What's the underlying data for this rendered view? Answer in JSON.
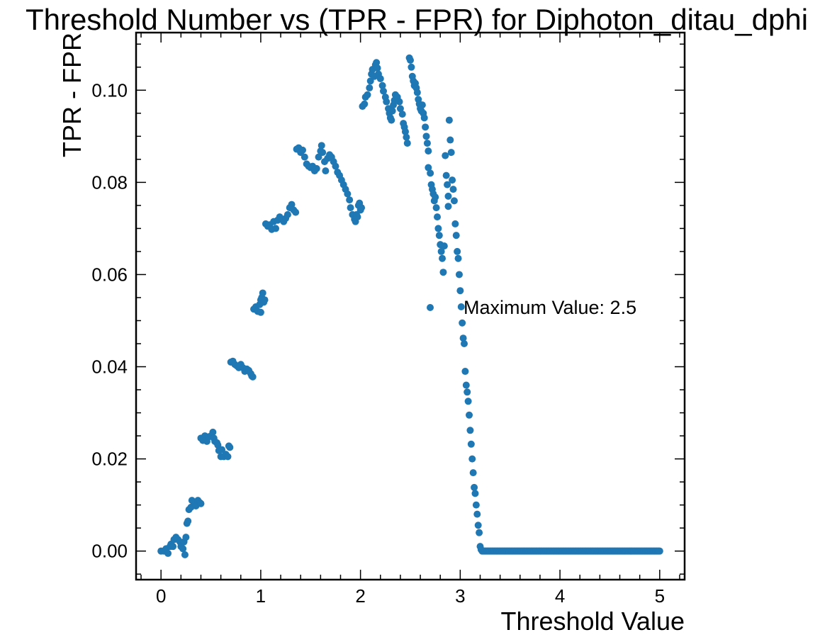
{
  "chart_data": {
    "type": "scatter",
    "title": "Threshold Number vs (TPR - FPR) for Diphoton_ditau_dphi",
    "xlabel": "Threshold Value",
    "ylabel": "TPR - FPR",
    "xlim": [
      -0.25,
      5.25
    ],
    "ylim": [
      -0.0062,
      0.1125
    ],
    "xticks": [
      0,
      1,
      2,
      3,
      4,
      5
    ],
    "xtick_labels": [
      "0",
      "1",
      "2",
      "3",
      "4",
      "5"
    ],
    "yticks": [
      0.0,
      0.02,
      0.04,
      0.06,
      0.08,
      0.1
    ],
    "ytick_labels": [
      "0.00",
      "0.02",
      "0.04",
      "0.06",
      "0.08",
      "0.10"
    ],
    "grid": false,
    "legend": {
      "position": "center-right",
      "entries": [
        "Maximum Value:  2.5"
      ]
    },
    "marker_color": "#1f77b4",
    "series": [
      {
        "name": "Maximum Value:  2.5",
        "points": [
          [
            0.0,
            0.0
          ],
          [
            0.03,
            0.0
          ],
          [
            0.05,
            0.0005
          ],
          [
            0.07,
            -0.0005
          ],
          [
            0.09,
            0.001
          ],
          [
            0.1,
            0.0015
          ],
          [
            0.12,
            0.001
          ],
          [
            0.13,
            0.0025
          ],
          [
            0.15,
            0.003
          ],
          [
            0.17,
            0.0025
          ],
          [
            0.19,
            0.002
          ],
          [
            0.2,
            0.001
          ],
          [
            0.22,
            0.0005
          ],
          [
            0.23,
            0.002
          ],
          [
            0.24,
            -0.0008
          ],
          [
            0.25,
            0.003
          ],
          [
            0.26,
            0.006
          ],
          [
            0.27,
            0.0065
          ],
          [
            0.28,
            0.009
          ],
          [
            0.3,
            0.0095
          ],
          [
            0.31,
            0.011
          ],
          [
            0.33,
            0.0105
          ],
          [
            0.35,
            0.0098
          ],
          [
            0.37,
            0.011
          ],
          [
            0.39,
            0.0105
          ],
          [
            0.4,
            0.0103
          ],
          [
            0.4,
            0.0245
          ],
          [
            0.42,
            0.024
          ],
          [
            0.44,
            0.025
          ],
          [
            0.46,
            0.0238
          ],
          [
            0.48,
            0.0248
          ],
          [
            0.5,
            0.025
          ],
          [
            0.52,
            0.0258
          ],
          [
            0.53,
            0.0245
          ],
          [
            0.54,
            0.0238
          ],
          [
            0.56,
            0.0235
          ],
          [
            0.57,
            0.023
          ],
          [
            0.58,
            0.0218
          ],
          [
            0.6,
            0.0205
          ],
          [
            0.61,
            0.022
          ],
          [
            0.63,
            0.0205
          ],
          [
            0.65,
            0.021
          ],
          [
            0.67,
            0.0205
          ],
          [
            0.68,
            0.0228
          ],
          [
            0.69,
            0.0225
          ],
          [
            0.7,
            0.041
          ],
          [
            0.72,
            0.0412
          ],
          [
            0.74,
            0.0405
          ],
          [
            0.76,
            0.0402
          ],
          [
            0.78,
            0.0398
          ],
          [
            0.8,
            0.0405
          ],
          [
            0.82,
            0.0398
          ],
          [
            0.84,
            0.039
          ],
          [
            0.86,
            0.0395
          ],
          [
            0.88,
            0.0392
          ],
          [
            0.9,
            0.0385
          ],
          [
            0.91,
            0.038
          ],
          [
            0.92,
            0.0378
          ],
          [
            0.93,
            0.0525
          ],
          [
            0.95,
            0.053
          ],
          [
            0.97,
            0.052
          ],
          [
            0.99,
            0.0535
          ],
          [
            1.0,
            0.0545
          ],
          [
            1.0,
            0.0518
          ],
          [
            1.01,
            0.055
          ],
          [
            1.02,
            0.056
          ],
          [
            1.03,
            0.054
          ],
          [
            1.04,
            0.0545
          ],
          [
            1.05,
            0.071
          ],
          [
            1.07,
            0.0705
          ],
          [
            1.09,
            0.0708
          ],
          [
            1.11,
            0.0698
          ],
          [
            1.13,
            0.0715
          ],
          [
            1.15,
            0.07
          ],
          [
            1.17,
            0.0718
          ],
          [
            1.19,
            0.0725
          ],
          [
            1.21,
            0.072
          ],
          [
            1.23,
            0.0715
          ],
          [
            1.25,
            0.0722
          ],
          [
            1.27,
            0.073
          ],
          [
            1.29,
            0.0745
          ],
          [
            1.31,
            0.0752
          ],
          [
            1.33,
            0.074
          ],
          [
            1.35,
            0.0735
          ],
          [
            1.36,
            0.0872
          ],
          [
            1.38,
            0.0875
          ],
          [
            1.4,
            0.0865
          ],
          [
            1.42,
            0.087
          ],
          [
            1.44,
            0.0855
          ],
          [
            1.46,
            0.084
          ],
          [
            1.48,
            0.0835
          ],
          [
            1.5,
            0.0832
          ],
          [
            1.52,
            0.0835
          ],
          [
            1.54,
            0.0825
          ],
          [
            1.56,
            0.083
          ],
          [
            1.58,
            0.0855
          ],
          [
            1.6,
            0.0868
          ],
          [
            1.61,
            0.088
          ],
          [
            1.62,
            0.0865
          ],
          [
            1.64,
            0.0845
          ],
          [
            1.65,
            0.0825
          ],
          [
            1.67,
            0.0852
          ],
          [
            1.69,
            0.086
          ],
          [
            1.71,
            0.0855
          ],
          [
            1.73,
            0.0845
          ],
          [
            1.75,
            0.0835
          ],
          [
            1.77,
            0.0822
          ],
          [
            1.79,
            0.0815
          ],
          [
            1.81,
            0.0805
          ],
          [
            1.83,
            0.0795
          ],
          [
            1.85,
            0.0785
          ],
          [
            1.87,
            0.0775
          ],
          [
            1.89,
            0.0762
          ],
          [
            1.9,
            0.0745
          ],
          [
            1.92,
            0.073
          ],
          [
            1.94,
            0.072
          ],
          [
            1.95,
            0.0715
          ],
          [
            1.96,
            0.073
          ],
          [
            1.97,
            0.0725
          ],
          [
            1.98,
            0.075
          ],
          [
            1.99,
            0.0755
          ],
          [
            2.0,
            0.074
          ],
          [
            2.01,
            0.0745
          ],
          [
            2.02,
            0.0965
          ],
          [
            2.04,
            0.097
          ],
          [
            2.05,
            0.0985
          ],
          [
            2.07,
            0.099
          ],
          [
            2.09,
            0.1005
          ],
          [
            2.1,
            0.102
          ],
          [
            2.11,
            0.1035
          ],
          [
            2.12,
            0.1045
          ],
          [
            2.14,
            0.103
          ],
          [
            2.15,
            0.1055
          ],
          [
            2.16,
            0.106
          ],
          [
            2.17,
            0.1048
          ],
          [
            2.18,
            0.1035
          ],
          [
            2.2,
            0.1025
          ],
          [
            2.22,
            0.101
          ],
          [
            2.23,
            0.0998
          ],
          [
            2.25,
            0.0985
          ],
          [
            2.26,
            0.0975
          ],
          [
            2.28,
            0.096
          ],
          [
            2.29,
            0.095
          ],
          [
            2.3,
            0.094
          ],
          [
            2.31,
            0.0935
          ],
          [
            2.32,
            0.0955
          ],
          [
            2.33,
            0.0968
          ],
          [
            2.34,
            0.0978
          ],
          [
            2.35,
            0.099
          ],
          [
            2.37,
            0.0985
          ],
          [
            2.39,
            0.0975
          ],
          [
            2.4,
            0.096
          ],
          [
            2.42,
            0.0948
          ],
          [
            2.43,
            0.0928
          ],
          [
            2.44,
            0.092
          ],
          [
            2.45,
            0.091
          ],
          [
            2.46,
            0.0898
          ],
          [
            2.47,
            0.0885
          ],
          [
            2.49,
            0.107
          ],
          [
            2.5,
            0.1065
          ],
          [
            2.51,
            0.105
          ],
          [
            2.52,
            0.103
          ],
          [
            2.53,
            0.102
          ],
          [
            2.54,
            0.101
          ],
          [
            2.55,
            0.1015
          ],
          [
            2.56,
            0.1005
          ],
          [
            2.57,
            0.0995
          ],
          [
            2.58,
            0.098
          ],
          [
            2.59,
            0.097
          ],
          [
            2.6,
            0.096
          ],
          [
            2.61,
            0.0955
          ],
          [
            2.62,
            0.0968
          ],
          [
            2.63,
            0.095
          ],
          [
            2.64,
            0.094
          ],
          [
            2.65,
            0.092
          ],
          [
            2.66,
            0.09
          ],
          [
            2.67,
            0.0885
          ],
          [
            2.68,
            0.0868
          ],
          [
            2.68,
            0.0832
          ],
          [
            2.7,
            0.082
          ],
          [
            2.71,
            0.0795
          ],
          [
            2.72,
            0.0785
          ],
          [
            2.73,
            0.0775
          ],
          [
            2.74,
            0.076
          ],
          [
            2.75,
            0.0768
          ],
          [
            2.76,
            0.0745
          ],
          [
            2.77,
            0.0725
          ],
          [
            2.78,
            0.07
          ],
          [
            2.79,
            0.0685
          ],
          [
            2.8,
            0.0665
          ],
          [
            2.81,
            0.065
          ],
          [
            2.82,
            0.0635
          ],
          [
            2.83,
            0.0605
          ],
          [
            2.84,
            0.0662
          ],
          [
            2.85,
            0.0858
          ],
          [
            2.86,
            0.0815
          ],
          [
            2.87,
            0.0795
          ],
          [
            2.88,
            0.077
          ],
          [
            2.88,
            0.0748
          ],
          [
            2.89,
            0.0935
          ],
          [
            2.9,
            0.0892
          ],
          [
            2.91,
            0.0865
          ],
          [
            2.92,
            0.0805
          ],
          [
            2.93,
            0.0785
          ],
          [
            2.94,
            0.076
          ],
          [
            2.95,
            0.071
          ],
          [
            2.96,
            0.0685
          ],
          [
            2.97,
            0.065
          ],
          [
            2.98,
            0.0635
          ],
          [
            2.99,
            0.06
          ],
          [
            3.0,
            0.0565
          ],
          [
            3.01,
            0.053
          ],
          [
            3.02,
            0.0495
          ],
          [
            3.03,
            0.0462
          ],
          [
            3.04,
            0.045
          ],
          [
            3.05,
            0.039
          ],
          [
            3.06,
            0.036
          ],
          [
            3.07,
            0.0345
          ],
          [
            3.08,
            0.0325
          ],
          [
            3.09,
            0.0295
          ],
          [
            3.1,
            0.0262
          ],
          [
            3.11,
            0.0232
          ],
          [
            3.12,
            0.02
          ],
          [
            3.13,
            0.017
          ],
          [
            3.14,
            0.0138
          ],
          [
            3.15,
            0.0125
          ],
          [
            3.16,
            0.01
          ],
          [
            3.17,
            0.008
          ],
          [
            3.18,
            0.0056
          ],
          [
            3.19,
            0.004
          ],
          [
            3.2,
            0.001
          ],
          [
            3.21,
            0.0003
          ]
        ],
        "flat_tail": {
          "from": 3.22,
          "to": 5.0,
          "step": 0.01,
          "y": 0.0
        }
      }
    ]
  }
}
